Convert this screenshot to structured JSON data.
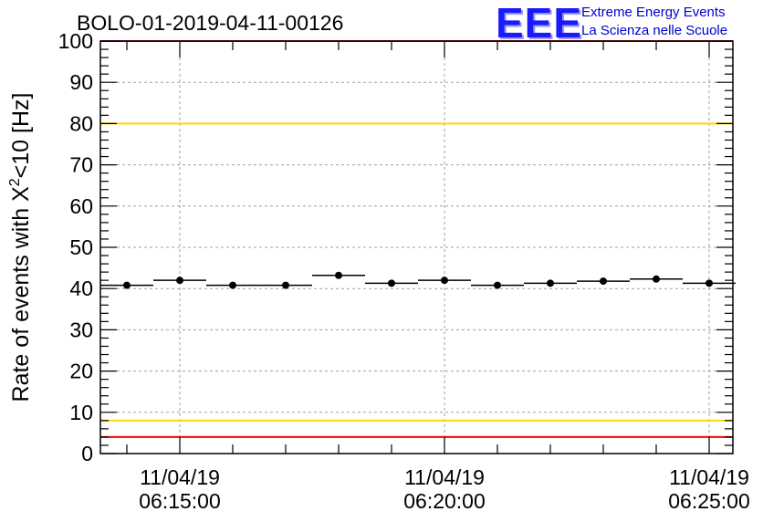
{
  "logo": {
    "mark": "EEE",
    "line1": "Extreme Energy Events",
    "line2": "La Scienza nelle Scuole"
  },
  "colors": {
    "red_limit": "#ff0000",
    "yellow_limit": "#ffd700",
    "points": "#000000",
    "logo": "#1a1aff"
  },
  "chart_data": {
    "type": "scatter",
    "title": "BOLO-01-2019-04-11-00126",
    "ylabel_main": "Rate of events with X",
    "ylabel_sup": "2",
    "ylabel_tail": "<10 [Hz]",
    "xlabel": "",
    "ylim": [
      0,
      100
    ],
    "xlim_seconds_from_first_tick": [
      -90,
      600
    ],
    "y_ticks": [
      0,
      10,
      20,
      30,
      40,
      50,
      60,
      70,
      80,
      90,
      100
    ],
    "x_ticks": [
      {
        "date": "11/04/19",
        "time": "06:15:00",
        "t": 0
      },
      {
        "date": "11/04/19",
        "time": "06:20:00",
        "t": 300
      },
      {
        "date": "11/04/19",
        "time": "06:25:00",
        "t": 600
      }
    ],
    "grid": true,
    "bin_width_seconds": 60,
    "series": [
      {
        "values": [
          {
            "t": -60,
            "y": 40.8
          },
          {
            "t": 0,
            "y": 42.0
          },
          {
            "t": 60,
            "y": 40.8
          },
          {
            "t": 120,
            "y": 40.8
          },
          {
            "t": 180,
            "y": 43.2
          },
          {
            "t": 240,
            "y": 41.3
          },
          {
            "t": 300,
            "y": 42.0
          },
          {
            "t": 360,
            "y": 40.8
          },
          {
            "t": 420,
            "y": 41.3
          },
          {
            "t": 480,
            "y": 41.8
          },
          {
            "t": 540,
            "y": 42.3
          },
          {
            "t": 600,
            "y": 41.3
          }
        ]
      }
    ],
    "limits": [
      {
        "y": 100,
        "color": "#ff0000"
      },
      {
        "y": 80,
        "color": "#ffd700"
      },
      {
        "y": 8,
        "color": "#ffd700"
      },
      {
        "y": 4,
        "color": "#ff0000"
      }
    ]
  }
}
